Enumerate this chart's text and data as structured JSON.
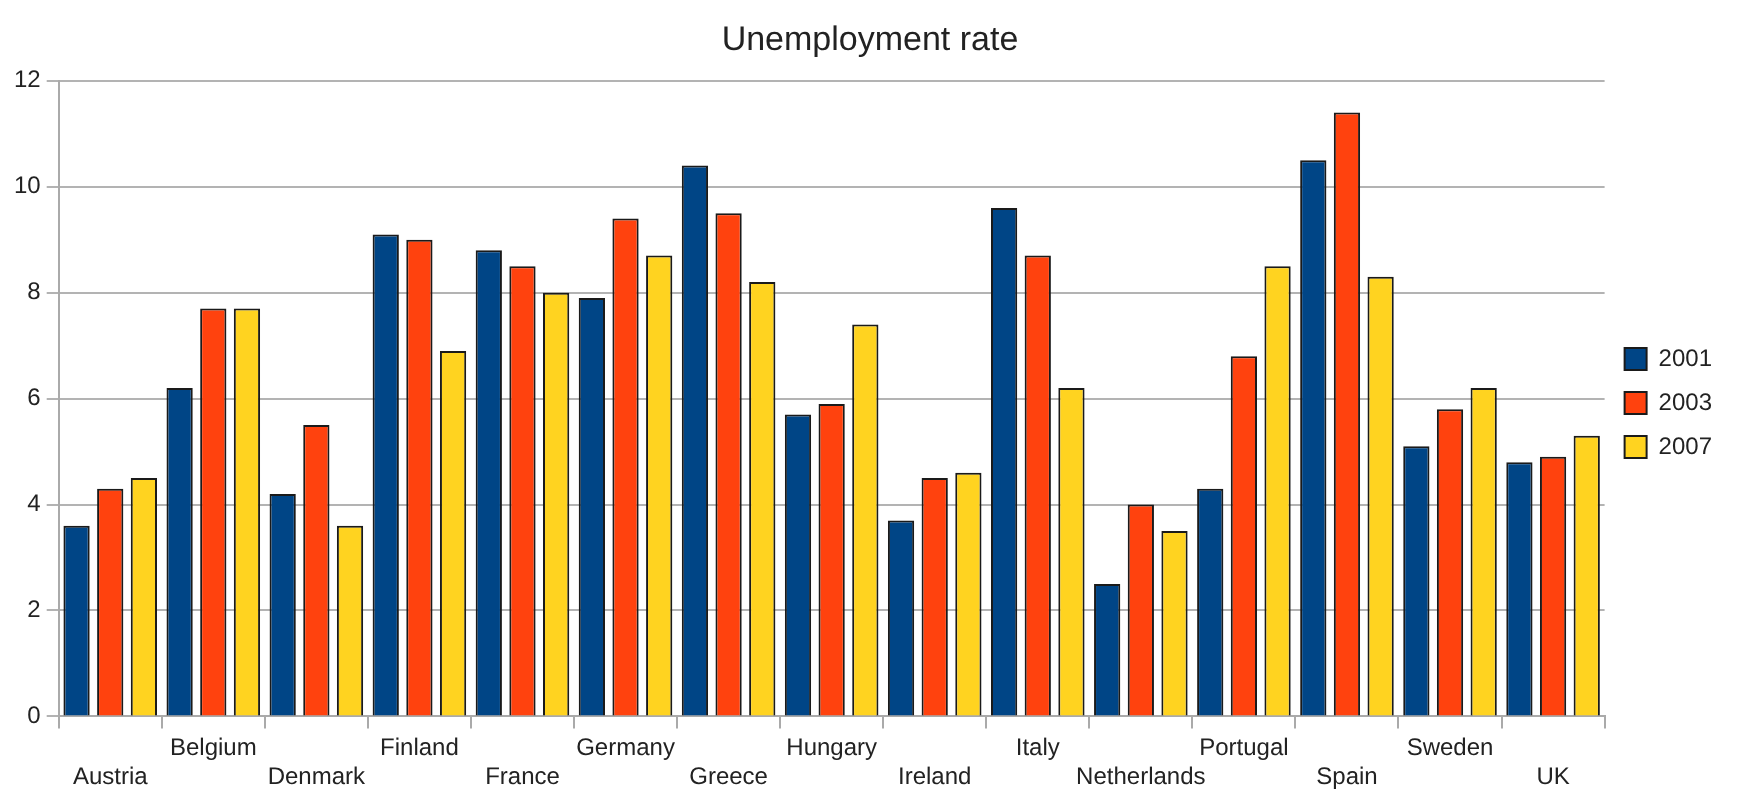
{
  "chart_data": {
    "type": "bar",
    "title": "Unemployment rate",
    "categories": [
      "Austria",
      "Belgium",
      "Denmark",
      "Finland",
      "France",
      "Germany",
      "Greece",
      "Hungary",
      "Ireland",
      "Italy",
      "Netherlands",
      "Portugal",
      "Spain",
      "Sweden",
      "UK"
    ],
    "series": [
      {
        "name": "2001",
        "color": "#004586",
        "values": [
          3.6,
          6.2,
          4.2,
          9.1,
          8.8,
          7.9,
          10.4,
          5.7,
          3.7,
          9.6,
          2.5,
          4.3,
          10.5,
          5.1,
          4.8
        ]
      },
      {
        "name": "2003",
        "color": "#ff420e",
        "values": [
          4.3,
          7.7,
          5.5,
          9.0,
          8.5,
          9.4,
          9.5,
          5.9,
          4.5,
          8.7,
          4.0,
          6.8,
          11.4,
          5.8,
          4.9
        ]
      },
      {
        "name": "2007",
        "color": "#ffd320",
        "values": [
          4.5,
          7.7,
          3.6,
          6.9,
          8.0,
          8.7,
          8.2,
          7.4,
          4.6,
          6.2,
          3.5,
          8.5,
          8.3,
          6.2,
          5.3
        ]
      }
    ],
    "ylim": [
      0,
      12
    ],
    "yticks": [
      0,
      2,
      4,
      6,
      8,
      10,
      12
    ],
    "grid": "y",
    "legend": "right"
  }
}
